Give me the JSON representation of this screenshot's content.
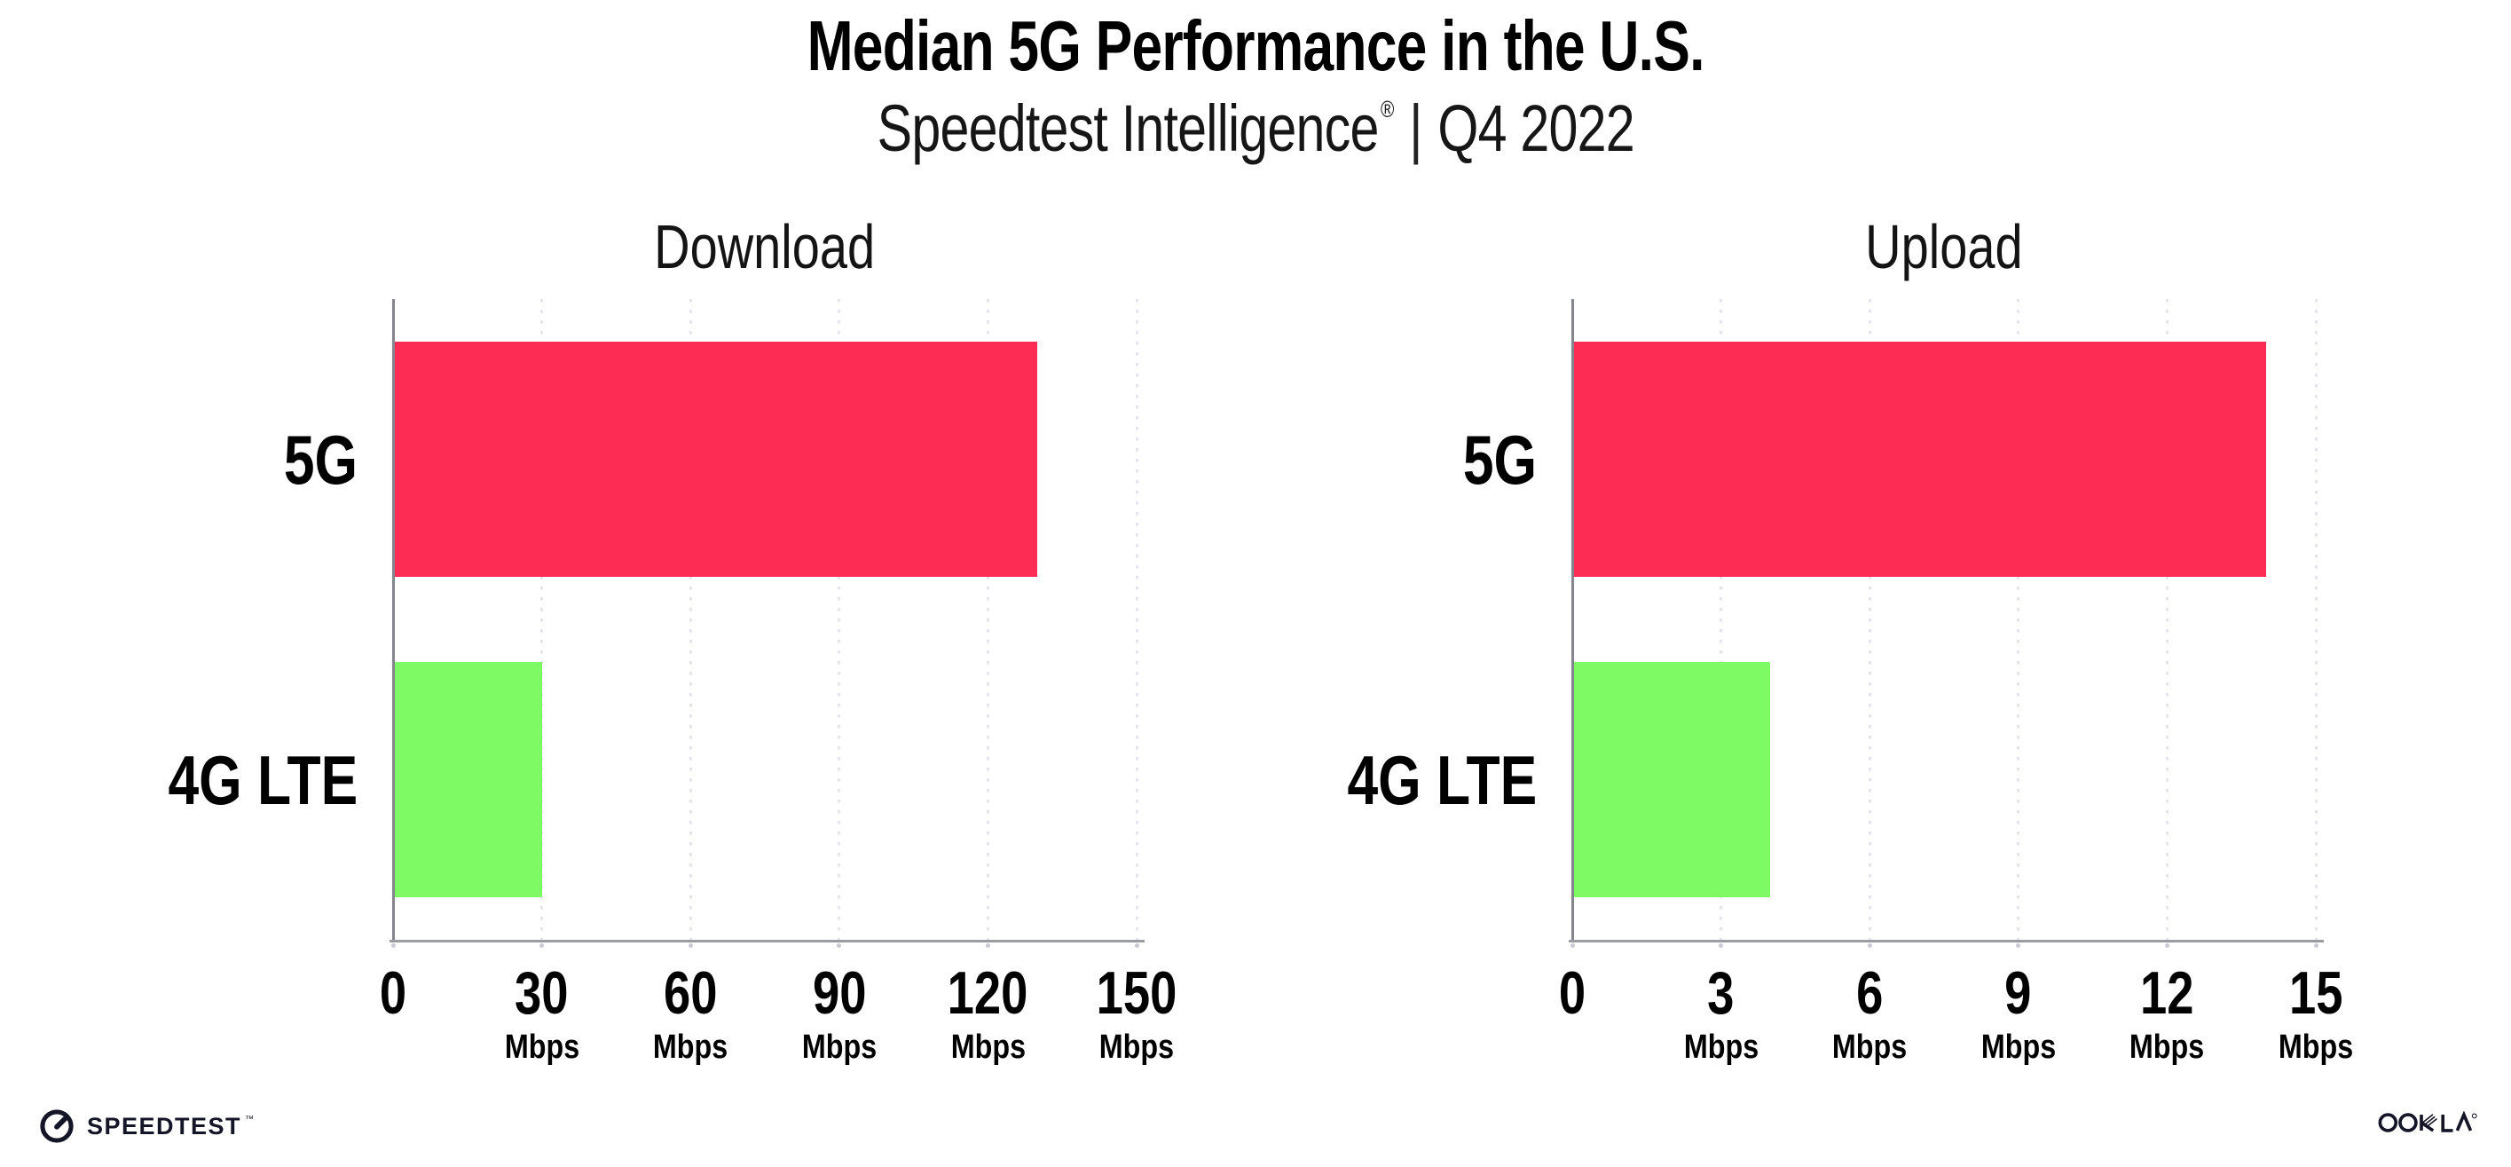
{
  "header": {
    "title": "Median 5G Performance in the U.S.",
    "subtitle_brand": "Speedtest Intelligence",
    "subtitle_reg": "®",
    "subtitle_separator": "|",
    "subtitle_period": "Q4 2022"
  },
  "chart_data": [
    {
      "type": "bar",
      "orientation": "horizontal",
      "title": "Download",
      "categories": [
        "5G",
        "4G LTE"
      ],
      "values": [
        130,
        30
      ],
      "unit": "Mbps",
      "xlabel": "",
      "ylabel": "",
      "xlim": [
        0,
        150
      ],
      "xticks": [
        0,
        30,
        60,
        90,
        120,
        150
      ],
      "grid": "dotted-vertical",
      "legend": "none"
    },
    {
      "type": "bar",
      "orientation": "horizontal",
      "title": "Upload",
      "categories": [
        "5G",
        "4G LTE"
      ],
      "values": [
        14,
        4
      ],
      "unit": "Mbps",
      "xlabel": "",
      "ylabel": "",
      "xlim": [
        0,
        15
      ],
      "xticks": [
        0,
        3,
        6,
        9,
        12,
        15
      ],
      "grid": "dotted-vertical",
      "legend": "none"
    }
  ],
  "colors": {
    "bar_5g": "#FC2C55",
    "bar_4g_lte": "#7DFA64",
    "gridline": "#E4E3EE",
    "axis_left": "#85858D",
    "axis_bottom": "#9B9BA3",
    "tick_mark": "#CACAD4",
    "text": "#000000",
    "logo": "#141526"
  },
  "footer": {
    "speedtest_label": "SPEEDTEST",
    "speedtest_mark": "™",
    "ookla_label": "OOKLA",
    "ookla_mark": "®"
  }
}
